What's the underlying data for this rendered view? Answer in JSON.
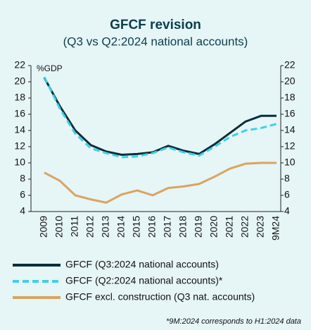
{
  "chart_data": {
    "type": "line",
    "title": "GFCF revision",
    "subtitle": "(Q3 vs Q2:2024 national accounts)",
    "y_axis_label": "%GDP",
    "footnote": "*9M:2024 corresponds to H1:2024 data",
    "categories": [
      "2009",
      "2010",
      "2011",
      "2012",
      "2013",
      "2014",
      "2015",
      "2016",
      "2017",
      "2018",
      "2019",
      "2020",
      "2021",
      "2022",
      "2023",
      "9M24"
    ],
    "series": [
      {
        "name": "GFCF (Q3:2024 national accounts)",
        "color": "#0b2e3a",
        "dash": false,
        "values": [
          20.5,
          17.0,
          14.0,
          12.2,
          11.4,
          11.0,
          11.1,
          11.3,
          12.1,
          11.5,
          11.1,
          12.3,
          13.7,
          15.1,
          15.8,
          15.8
        ]
      },
      {
        "name": "GFCF (Q2:2024 national accounts)*",
        "color": "#3fd0e8",
        "dash": true,
        "values": [
          20.6,
          16.7,
          13.6,
          11.8,
          11.2,
          10.7,
          10.8,
          11.2,
          11.9,
          11.3,
          10.9,
          12.0,
          13.2,
          14.0,
          14.3,
          14.8
        ]
      },
      {
        "name": "GFCF excl. construction (Q3 nat. accounts)",
        "color": "#d9a460",
        "dash": false,
        "values": [
          8.8,
          7.8,
          6.0,
          5.5,
          5.1,
          6.1,
          6.6,
          6.0,
          6.9,
          7.1,
          7.4,
          8.3,
          9.3,
          9.9,
          10.0,
          10.0
        ]
      }
    ],
    "ylim": [
      4,
      22
    ],
    "yticks": [
      4,
      6,
      8,
      10,
      12,
      14,
      16,
      18,
      20,
      22
    ],
    "y2lim": [
      4,
      22
    ],
    "y2ticks": [
      4,
      6,
      8,
      10,
      12,
      14,
      16,
      18,
      20,
      22
    ]
  }
}
